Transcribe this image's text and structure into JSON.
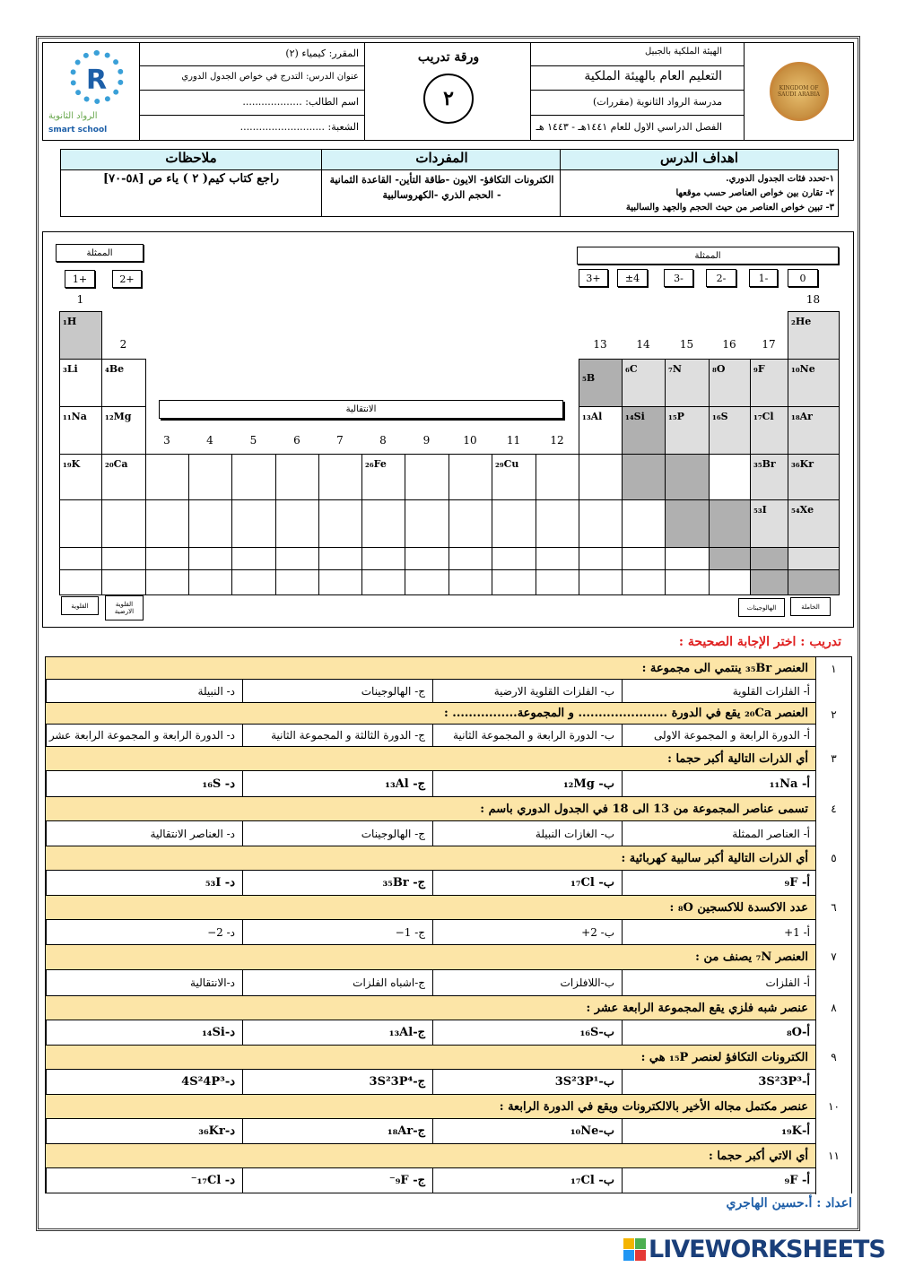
{
  "header": {
    "right": [
      "الهيئة الملكية بالجبيل",
      "التعليم العام بالهيئة الملكية",
      "مدرسة الرواد الثانوية (مقررات)",
      "الفصل الدراسي الاول للعام ١٤٤١هـ - ١٤٤٣ هـ"
    ],
    "center_title": "ورقة تدريب",
    "center_number": "٢",
    "left": [
      "المقرر: كيمياء (٢)",
      "عنوان الدرس: التدرج في خواص الجدول الدوري",
      "اسم الطالب: ...................",
      "الشعبة: ..........................."
    ],
    "logo_text": "الرواد الثانوية",
    "logo_sub": "smart school",
    "seal_text": "KINGDOM OF SAUDI ARABIA"
  },
  "lesson": {
    "headers": [
      "اهداف الدرس",
      "المفردات",
      "ملاحظات"
    ],
    "objectives": [
      "١-تحدد فئات الجدول الدوري.",
      "٢- تقارن بين خواص العناصر حسب موقعها",
      "٣- تبين خواص العناصر من حيث الحجم والجهد والسالبية"
    ],
    "vocab": "الكترونات التكافؤ- الايون -طاقة التأين- القاعدة الثمانية - الحجم الذري -الكهروسالبية",
    "notes": "راجع كتاب كيم( ٢ ) ياء ص [٥٨-٧٠]"
  },
  "table": {
    "left_label": "الممثلة",
    "right_label": "الممثلة",
    "transition_label": "الانتقالية",
    "left_charges": [
      "+1",
      "+2"
    ],
    "right_charges": [
      "+3",
      "±4",
      "-3",
      "-2",
      "-1",
      "0"
    ],
    "bottom_labels": [
      "القلوية",
      "القلوية الارضية",
      "الهالوجينات",
      "الخاملة"
    ],
    "groups": [
      "1",
      "2",
      "3",
      "4",
      "5",
      "6",
      "7",
      "8",
      "9",
      "10",
      "11",
      "12",
      "13",
      "14",
      "15",
      "16",
      "17",
      "18"
    ],
    "shade_colors": {
      "light": "#dedede",
      "medium": "#c8c8c8",
      "dark": "#b0b0b0"
    },
    "elements": [
      {
        "g": 1,
        "p": 1,
        "label": "₁H",
        "shade": "medium"
      },
      {
        "g": 18,
        "p": 1,
        "label": "₂He",
        "shade": "light"
      },
      {
        "g": 1,
        "p": 2,
        "label": "₃Li"
      },
      {
        "g": 2,
        "p": 2,
        "label": "₄Be"
      },
      {
        "g": 13,
        "p": 2,
        "label": "₅B",
        "shade": "dark"
      },
      {
        "g": 14,
        "p": 2,
        "label": "₆C",
        "shade": "light"
      },
      {
        "g": 15,
        "p": 2,
        "label": "₇N",
        "shade": "light"
      },
      {
        "g": 16,
        "p": 2,
        "label": "₈O",
        "shade": "light"
      },
      {
        "g": 17,
        "p": 2,
        "label": "₉F",
        "shade": "light"
      },
      {
        "g": 18,
        "p": 2,
        "label": "₁₀Ne",
        "shade": "light"
      },
      {
        "g": 1,
        "p": 3,
        "label": "₁₁Na"
      },
      {
        "g": 2,
        "p": 3,
        "label": "₁₂Mg"
      },
      {
        "g": 13,
        "p": 3,
        "label": "₁₃Al"
      },
      {
        "g": 14,
        "p": 3,
        "label": "₁₄Si",
        "shade": "dark"
      },
      {
        "g": 15,
        "p": 3,
        "label": "₁₅P",
        "shade": "light"
      },
      {
        "g": 16,
        "p": 3,
        "label": "₁₆S",
        "shade": "light"
      },
      {
        "g": 17,
        "p": 3,
        "label": "₁₇Cl",
        "shade": "light"
      },
      {
        "g": 18,
        "p": 3,
        "label": "₁₈Ar",
        "shade": "light"
      },
      {
        "g": 1,
        "p": 4,
        "label": "₁₉K"
      },
      {
        "g": 2,
        "p": 4,
        "label": "₂₀Ca"
      },
      {
        "g": 8,
        "p": 4,
        "label": "₂₆Fe"
      },
      {
        "g": 11,
        "p": 4,
        "label": "₂₉Cu"
      },
      {
        "g": 14,
        "p": 4,
        "label": "",
        "shade": "dark"
      },
      {
        "g": 15,
        "p": 4,
        "label": "",
        "shade": "dark"
      },
      {
        "g": 17,
        "p": 4,
        "label": "₃₅Br",
        "shade": "light"
      },
      {
        "g": 18,
        "p": 4,
        "label": "₃₆Kr",
        "shade": "light"
      },
      {
        "g": 15,
        "p": 5,
        "label": "",
        "shade": "dark"
      },
      {
        "g": 16,
        "p": 5,
        "label": "",
        "shade": "dark"
      },
      {
        "g": 17,
        "p": 5,
        "label": "₅₃I",
        "shade": "light"
      },
      {
        "g": 18,
        "p": 5,
        "label": "₅₄Xe",
        "shade": "light"
      },
      {
        "g": 16,
        "p": 6,
        "label": "",
        "shade": "dark"
      },
      {
        "g": 17,
        "p": 6,
        "label": "",
        "shade": "dark"
      },
      {
        "g": 18,
        "p": 6,
        "label": "",
        "shade": "light"
      },
      {
        "g": 17,
        "p": 7,
        "label": "",
        "shade": "dark"
      },
      {
        "g": 18,
        "p": 7,
        "label": "",
        "shade": "dark"
      }
    ]
  },
  "quiz": {
    "title": "تدريب : اختر الإجابة الصحيحة :",
    "questions": [
      {
        "n": "١",
        "q": "العنصر ₃₅Br ينتمي الى مجموعة :",
        "o": [
          "أ- الفلزات القلوية",
          "ب- الفلزات القلوية الارضية",
          "ج- الهالوجينات",
          "د- النبيلة"
        ]
      },
      {
        "n": "٢",
        "q": "العنصر ₂₀Ca يقع في الدورة ...................... و المجموعة................ :",
        "o": [
          "أ- الدورة الرابعة و المجموعة الاولى",
          "ب- الدورة الرابعة و المجموعة الثانية",
          "ج- الدورة الثالثة و المجموعة الثانية",
          "د- الدورة الرابعة و المجموعة الرابعة عشر"
        ]
      },
      {
        "n": "٣",
        "q": "أي الذرات التالية أكبر حجما :",
        "o": [
          "أ- ₁₁Na",
          "ب- ₁₂Mg",
          "ج- ₁₃Al",
          "د- ₁₆S"
        ]
      },
      {
        "n": "٤",
        "q": "تسمى عناصر المجموعة من 13 الى 18 في الجدول الدوري باسم :",
        "o": [
          "أ- العناصر الممثلة",
          "ب- الغازات النبيلة",
          "ج- الهالوجينات",
          "د- العناصر الانتقالية"
        ]
      },
      {
        "n": "٥",
        "q": "أي الذرات التالية أكبر سالبية كهربائية :",
        "o": [
          "أ- ₉F",
          "ب- ₁₇Cl",
          "ج- ₃₅Br",
          "د- ₅₃I"
        ]
      },
      {
        "n": "٦",
        "q": "عدد الاكسدة للاكسجين ₈O :",
        "o": [
          "أ- 1+",
          "ب- 2+",
          "ج- 1−",
          "د- 2−"
        ]
      },
      {
        "n": "٧",
        "q": "العنصر ₇N يصنف من :",
        "o": [
          "أ- الفلزات",
          "ب-اللافلزات",
          "ج-اشباه الفلزات",
          "د-الانتقالية"
        ]
      },
      {
        "n": "٨",
        "q": "عنصر شبه فلزي يقع المجموعة الرابعة عشر :",
        "o": [
          "أ-₈O",
          "ب-₁₆S",
          "ج-₁₃Al",
          "د-₁₄Si"
        ]
      },
      {
        "n": "٩",
        "q": "الكترونات التكافؤ لعنصر ₁₅P هي :",
        "o": [
          "أ-3S²3P³",
          "ب-3S²3P¹",
          "ج-3S²3P⁴",
          "د-4S²4P³"
        ]
      },
      {
        "n": "١٠",
        "q": "عنصر مكتمل مجاله الأخير بالالكترونات ويقع في الدورة الرابعة :",
        "o": [
          "أ-₁₉K",
          "ب-₁₀Ne",
          "ج-₁₈Ar",
          "د-₃₆Kr"
        ]
      },
      {
        "n": "١١",
        "q": "أي الاتي أكبر حجما :",
        "o": [
          "أ- ₉F",
          "ب- ₁₇Cl",
          "ج- ₉F⁻",
          "د- ₁₇Cl⁻"
        ]
      }
    ]
  },
  "footer": {
    "author": "اعداد : أ.حسين الهاجري",
    "brand": "LIVEWORKSHEETS"
  },
  "colors": {
    "question_bg": "#fce5a7",
    "lesson_header_bg": "#d6f3f8",
    "title_red": "#e02020",
    "author_blue": "#1f5fa8"
  }
}
